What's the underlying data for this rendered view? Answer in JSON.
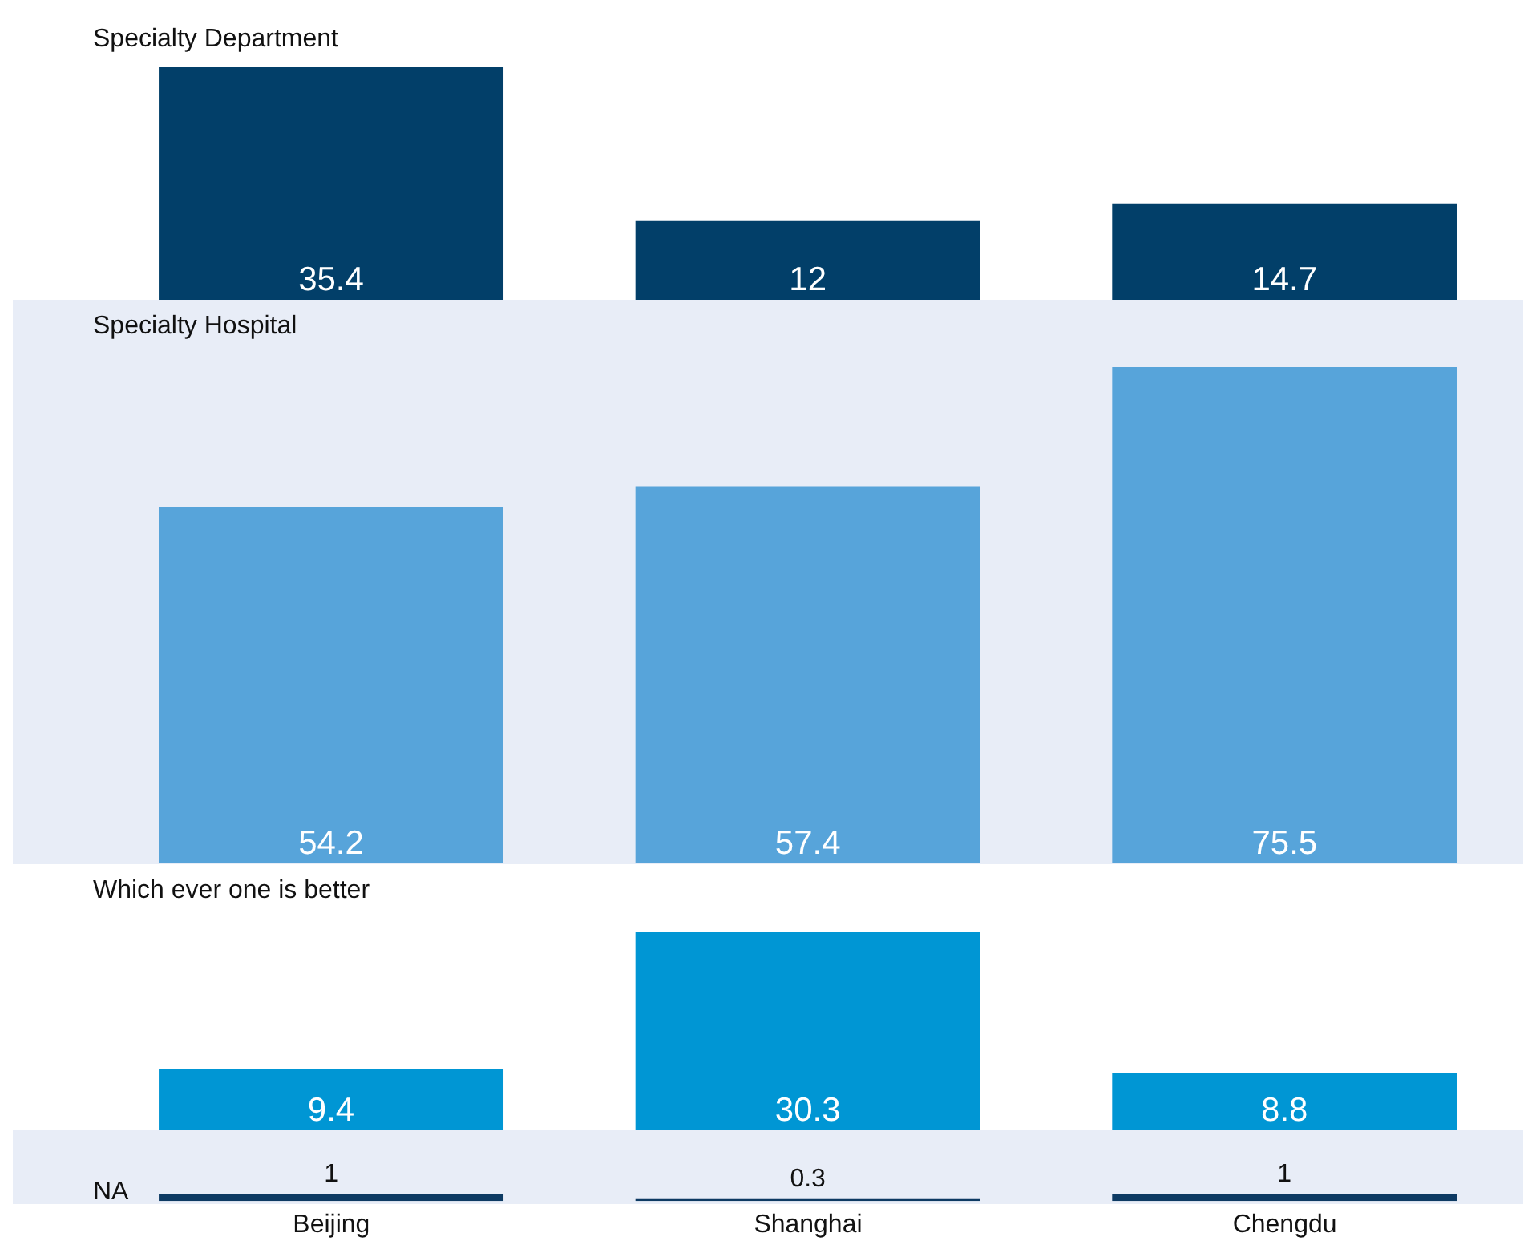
{
  "chart_data": [
    {
      "type": "bar",
      "title": "Specialty Department",
      "categories": [
        null,
        null,
        null
      ],
      "values": [
        35.4,
        12,
        14.7
      ],
      "color": "#023f69",
      "data_labels": true,
      "tick_labels": false
    },
    {
      "type": "bar",
      "title": "Specialty Hospital",
      "categories": [
        null,
        null,
        null
      ],
      "values": [
        54.2,
        57.4,
        75.5
      ],
      "color": "#57a4da",
      "data_labels": true,
      "tick_labels": false
    },
    {
      "type": "bar",
      "title": "Which ever one is better",
      "categories": [
        null,
        null,
        null
      ],
      "values": [
        9.4,
        30.3,
        8.8
      ],
      "color": "#0096d4",
      "data_labels": true,
      "tick_labels": false
    },
    {
      "type": "bar",
      "title": "NA",
      "categories": [
        "Beijing",
        "Shanghai",
        "Chengdu"
      ],
      "values": [
        1,
        0.3,
        1
      ],
      "color": "#0d3a63",
      "data_labels": true,
      "tick_labels": "x"
    }
  ]
}
